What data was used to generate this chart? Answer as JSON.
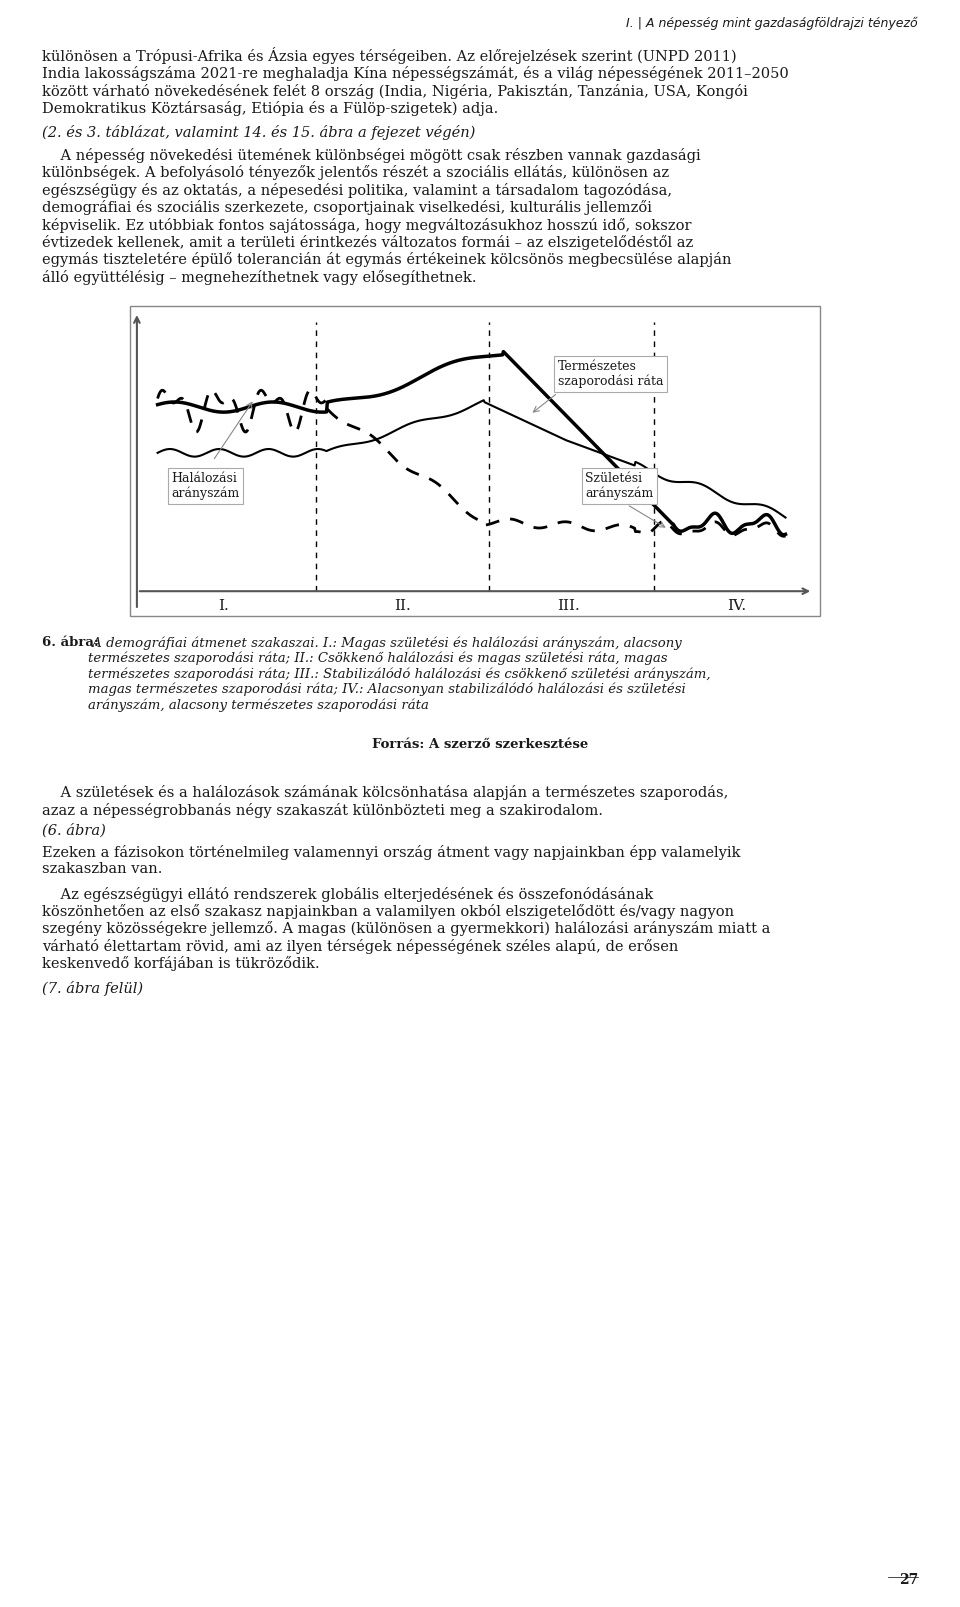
{
  "header_text": "I. | A népesség mint gazdaságföldrajzi tényező",
  "para1": "különösen a Trópusi-Afrika és Ázsia egyes térségeiben. Az előrejelzések szerint (UNPD 2011) India lakosságszáma 2021-re meghaladja Kína népességszámát, és a világ népességének 2011–2050 között várható növekedésének felét 8 ország (India, Nigéria, Pakisztán, Tanzánia, USA, Kongói Demokratikus Köztársaság, Etiópia és a Fülöp-szigetek) adja.",
  "para1_italic": "(2. és 3. táblázat, valamint 14. és 15. ábra a fejezet végén)",
  "para2": "A népesség növekedési ütemének különbségei mögött csak részben vannak gazdasági különbségek. A befolyásoló tényezők jelentős részét a szociális ellátás, különösen az egészségügy és az oktatás, a népesedési politika, valamint a társadalom tagozódása, demográfiai és szociális szerkezete, csoportjainak viselkedési, kulturális jellemzői képviselik. Ez utóbbiak fontos sajátossága, hogy megváltozásukhoz hosszú idő, sokszor évtizedek kellenek, amit a területi érintkezés változatos formái – az elszigetelődéstől az egymás tiszteletére épülő tolerancián át egymás értékeinek kölcsönös megbecsülése alapján álló együttélésig – megnehezíthetnek vagy elősegíthetnek.",
  "fig_caption_bold": "6. ábra:",
  "fig_caption_rest": " A demográfiai átmenet szakaszai. I.: Magas születési és halálozási arányszám, alacsony természetes szaporodási ráta; II.: Csökkenő halálozási és magas születési ráta, magas természetes szaporodási ráta; III.: Stabilizálódó halálozási és csökkenő születési arányszám, magas természetes szaporodási ráta; IV.: Alacsonyan stabilizálódó halálozási és születési arányszám, alacsony természetes szaporodási ráta",
  "fig_source_bold": "Forrás: A szerző szerkesztése",
  "para3": "A születések és a halálozások számának kölcsönhatása alapján a természetes szaporodás, azaz a népességrobbanás négy szakaszát különbözteti meg a szakirodalom.",
  "para3_italic": "(6. ábra)",
  "para4": "Ezeken a fázisokon történelmileg valamennyi ország átment vagy napjainkban épp valamelyik szakaszban van.",
  "para5": "Az egészségügyi ellátó rendszerek globális elterjedésének és összefonódásának köszönhetően az első szakasz napjainkban a valamilyen okból elszigetelődött és/vagy nagyon szegény közösségekre jellemző. A magas (különösen a gyermekkori) halálozási arányszám miatt a várható élettartam rövid, ami az ilyen térségek népességének széles alapú, de erősen keskenvedő korfájában is tükröződik.",
  "para5_italic": "(7. ábra felül)",
  "page_num": "27",
  "label_halal": "Halálozási\narányszám",
  "label_termeszetes": "Természetes\nszaporodási ráta",
  "label_szuletes": "Születési\narányszám",
  "phase_labels": [
    "I.",
    "II.",
    "III.",
    "IV."
  ],
  "background_color": "#ffffff",
  "text_color": "#1a1a1a",
  "font_size_body": 10.5,
  "font_size_header": 9.5
}
